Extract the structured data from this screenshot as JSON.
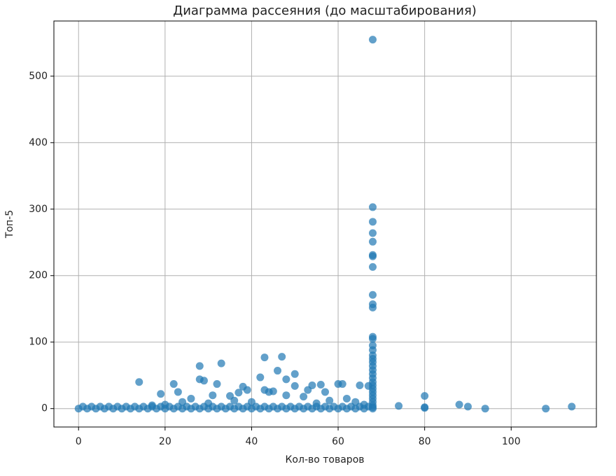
{
  "chart_data": {
    "type": "scatter",
    "title": "Диаграмма рассеяния (до масштабирования)",
    "x_label": "Кол-во товаров",
    "y_label": "Топ-5",
    "xlim": [
      -5.7,
      119.7
    ],
    "ylim": [
      -27.7,
      583
    ],
    "xticks": [
      0,
      20,
      40,
      60,
      80,
      100
    ],
    "yticks": [
      0,
      100,
      200,
      300,
      400,
      500
    ],
    "grid": true,
    "color": "#1f77b4",
    "x": [
      68,
      68,
      68,
      68,
      68,
      68,
      68,
      68,
      68,
      68,
      68,
      68,
      68,
      68,
      68,
      68,
      68,
      68,
      68,
      68,
      68,
      68,
      68,
      68,
      68,
      68,
      68,
      68,
      68,
      68,
      68,
      14,
      19,
      22,
      23,
      28,
      28,
      29,
      31,
      32,
      33,
      35,
      37,
      38,
      39,
      42,
      43,
      43,
      44,
      45,
      46,
      47,
      48,
      50,
      50,
      53,
      54,
      56,
      57,
      60,
      61,
      62,
      65,
      67,
      48,
      52,
      58,
      64,
      26,
      36,
      40,
      30,
      24,
      20,
      17,
      55,
      66,
      74,
      80,
      80,
      80,
      88,
      90,
      94,
      108,
      114,
      0,
      2,
      4,
      6,
      8,
      10,
      12,
      14,
      16,
      18,
      20,
      22,
      24,
      26,
      28,
      30,
      32,
      34,
      36,
      38,
      40,
      42,
      44,
      46,
      48,
      50,
      52,
      54,
      56,
      58,
      60,
      62,
      64,
      66,
      68,
      1,
      3,
      5,
      7,
      9,
      11,
      13,
      15,
      17,
      19,
      21,
      23,
      25,
      27,
      29,
      31,
      33,
      35,
      37,
      39,
      41,
      43,
      45,
      47,
      49,
      51,
      53,
      55,
      57,
      59,
      61,
      63,
      65,
      67
    ],
    "y": [
      555,
      303,
      281,
      264,
      251,
      231,
      229,
      213,
      171,
      157,
      152,
      108,
      105,
      95,
      88,
      80,
      75,
      70,
      64,
      58,
      52,
      46,
      40,
      35,
      30,
      25,
      20,
      15,
      10,
      5,
      2,
      40,
      22,
      37,
      25,
      64,
      44,
      42,
      20,
      37,
      68,
      19,
      24,
      33,
      28,
      47,
      77,
      28,
      25,
      26,
      57,
      78,
      44,
      52,
      34,
      28,
      35,
      36,
      25,
      37,
      37,
      15,
      35,
      34,
      20,
      18,
      12,
      10,
      15,
      12,
      10,
      8,
      10,
      6,
      5,
      8,
      6,
      4,
      19,
      2,
      1,
      6,
      3,
      0,
      0,
      3,
      0,
      0,
      0,
      0,
      0,
      0,
      0,
      0,
      0,
      0,
      0,
      0,
      0,
      0,
      0,
      0,
      0,
      0,
      0,
      0,
      0,
      0,
      0,
      0,
      0,
      0,
      0,
      0,
      0,
      0,
      0,
      0,
      0,
      0,
      0,
      3,
      3,
      3,
      3,
      3,
      3,
      3,
      3,
      3,
      3,
      3,
      3,
      3,
      3,
      3,
      3,
      3,
      3,
      3,
      3,
      3,
      3,
      3,
      3,
      3,
      3,
      3,
      3,
      3,
      3,
      3,
      3,
      3,
      3
    ]
  }
}
